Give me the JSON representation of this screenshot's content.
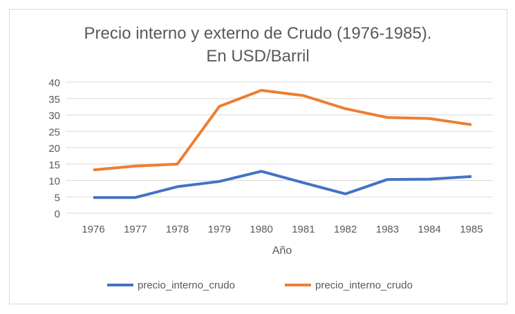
{
  "chart_data": {
    "type": "line",
    "title": [
      "Precio interno y externo de Crudo (1976-1985).",
      "En USD/Barril"
    ],
    "xlabel": "Año",
    "ylabel": "",
    "ylim": [
      0,
      40
    ],
    "yticks": [
      0,
      5,
      10,
      15,
      20,
      25,
      30,
      35,
      40
    ],
    "grid": true,
    "legend_position": "bottom",
    "categories": [
      "1976",
      "1977",
      "1978",
      "1979",
      "1980",
      "1981",
      "1982",
      "1983",
      "1984",
      "1985"
    ],
    "series": [
      {
        "name": "precio_interno_crudo",
        "color": "#4472C4",
        "values": [
          4.8,
          4.8,
          8.1,
          9.7,
          12.8,
          9.3,
          5.9,
          10.3,
          10.4,
          11.2
        ]
      },
      {
        "name": "precio_interno_crudo",
        "color": "#ED7D31",
        "values": [
          13.2,
          14.4,
          15.0,
          32.6,
          37.5,
          35.9,
          31.9,
          29.2,
          28.9,
          27.0
        ]
      }
    ]
  }
}
